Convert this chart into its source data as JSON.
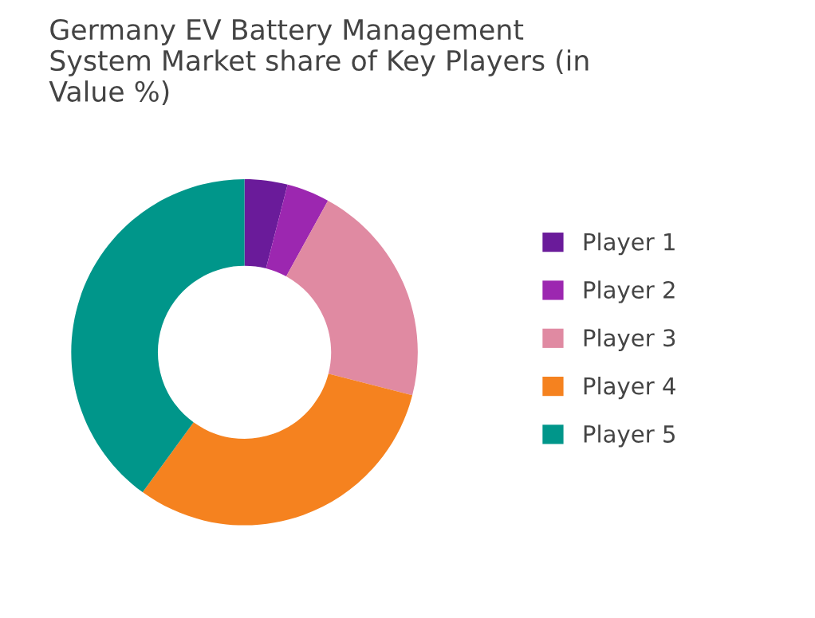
{
  "chart_data": {
    "type": "donut",
    "title": "Germany EV Battery Management System Market share of Key Players (in Value %)",
    "categories": [
      "Player 1",
      "Player 2",
      "Player 3",
      "Player 4",
      "Player 5"
    ],
    "values": [
      4,
      4,
      21,
      31,
      40
    ],
    "colors": [
      "#6a1b9a",
      "#9c27b0",
      "#e08aa2",
      "#f5821f",
      "#00968a"
    ],
    "legend": "right"
  }
}
